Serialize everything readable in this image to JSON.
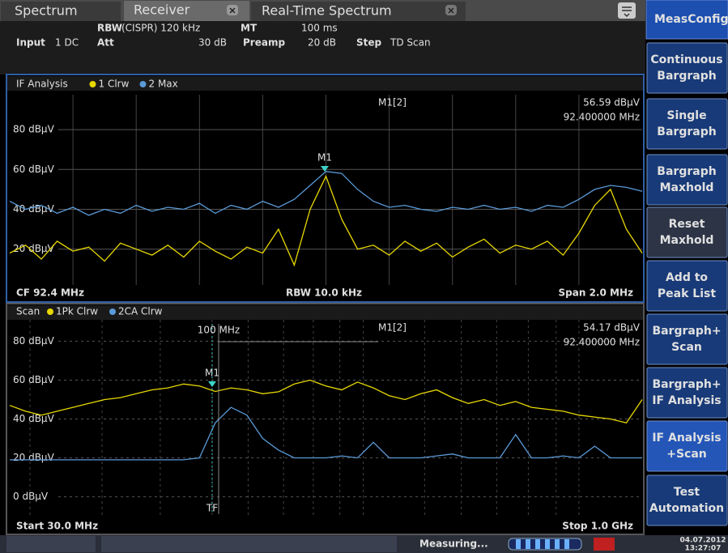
{
  "tabs": [
    "Spectrum",
    "Receiver",
    "Real-Time Spectrum"
  ],
  "header": {
    "rbw_label": "RBW",
    "rbw_value": "(CISPR) 120 kHz",
    "mt_label": "MT",
    "mt_value": "100 ms",
    "input_label": "Input",
    "input_value": "1 DC",
    "att_label": "Att",
    "att_value": "30 dB",
    "preamp_label": "Preamp",
    "preamp_value": "20 dB",
    "step_label": "Step",
    "step_value": "TD Scan"
  },
  "windows": [
    {
      "title": "IF Analysis",
      "traces": [
        {
          "name": "1 Clrw",
          "color": "#e8d800",
          "values": [
            18,
            22,
            15,
            24,
            19,
            21,
            14,
            23,
            20,
            17,
            22,
            16,
            24,
            19,
            15,
            21,
            18,
            30,
            12,
            40,
            56.59,
            35,
            20,
            22,
            17,
            24,
            19,
            23,
            16,
            21,
            25,
            18,
            22,
            20,
            24,
            17,
            28,
            42,
            50,
            30,
            18
          ]
        },
        {
          "name": "2 Max",
          "color": "#5a9ad8",
          "values": [
            44,
            40,
            42,
            38,
            41,
            37,
            40,
            38,
            42,
            39,
            41,
            40,
            43,
            38,
            42,
            40,
            44,
            41,
            45,
            52,
            59,
            58,
            50,
            44,
            41,
            42,
            40,
            39,
            41,
            40,
            42,
            40,
            41,
            39,
            42,
            41,
            45,
            50,
            52,
            51,
            49
          ]
        }
      ],
      "ylim": [
        2,
        97.5
      ],
      "yticks": [
        {
          "value": 80,
          "label": "80 dBµV"
        },
        {
          "value": 60,
          "label": "60 dBµV"
        },
        {
          "value": 40,
          "label": "40 dBµV"
        },
        {
          "value": 20,
          "label": "20 dBµV"
        }
      ],
      "marker": {
        "label": "M1",
        "readout": "M1[2]",
        "level": "56.59 dBµV",
        "frequency": "92.400000 MHz"
      },
      "footer": {
        "left": "CF 92.4 MHz",
        "center": "RBW 10.0 kHz",
        "right": "Span 2.0 MHz"
      }
    },
    {
      "title": "Scan",
      "traces": [
        {
          "name": "1Pk Clrw",
          "color": "#e8d800",
          "values": [
            47,
            44,
            42,
            44,
            46,
            48,
            50,
            51,
            53,
            55,
            56,
            58,
            57,
            54.17,
            56,
            55,
            53,
            54,
            58,
            60,
            57,
            55,
            59,
            56,
            52,
            50,
            53,
            55,
            51,
            48,
            50,
            47,
            49,
            46,
            45,
            44,
            42,
            41,
            40,
            38,
            50
          ]
        },
        {
          "name": "2CA Clrw",
          "color": "#5a9ad8",
          "values": [
            19,
            19,
            19,
            19,
            19,
            19,
            19,
            19,
            19,
            19,
            19,
            19,
            20,
            38,
            46,
            42,
            30,
            24,
            20,
            20,
            20,
            21,
            20,
            28,
            20,
            20,
            20,
            21,
            22,
            20,
            20,
            20,
            32,
            20,
            20,
            21,
            20,
            26,
            20,
            20,
            20
          ]
        }
      ],
      "ylim": [
        -11,
        91
      ],
      "yticks": [
        {
          "value": 80,
          "label": "80 dBµV"
        },
        {
          "value": 60,
          "label": "60 dBµV"
        },
        {
          "value": 40,
          "label": "40 dBµV"
        },
        {
          "value": 20,
          "label": "20 dBµV"
        },
        {
          "value": 0,
          "label": "0 dBµV"
        }
      ],
      "marker": {
        "label": "M1",
        "readout": "M1[2]",
        "level": "54.17 dBµV",
        "frequency": "92.400000 MHz"
      },
      "ref_label": "100 MHz",
      "tf_label": "TF",
      "footer": {
        "left": "Start 30.0 MHz",
        "right": "Stop 1.0 GHz"
      }
    }
  ],
  "softkeys_title": "MeasConfig",
  "softkeys": [
    [
      "Continuous",
      "Bargraph"
    ],
    [
      "Single",
      "Bargraph"
    ],
    [
      "Bargraph",
      "Maxhold"
    ],
    [
      "Reset",
      "Maxhold"
    ],
    [
      "Add to",
      "Peak List"
    ],
    [
      "Bargraph+",
      "Scan"
    ],
    [
      "Bargraph+",
      "IF Analysis"
    ],
    [
      "IF Analysis",
      "+Scan"
    ],
    [
      "Test",
      "Automation"
    ]
  ],
  "status": {
    "message": "Measuring...",
    "date": "04.07.2012",
    "time": "13:27:07"
  }
}
